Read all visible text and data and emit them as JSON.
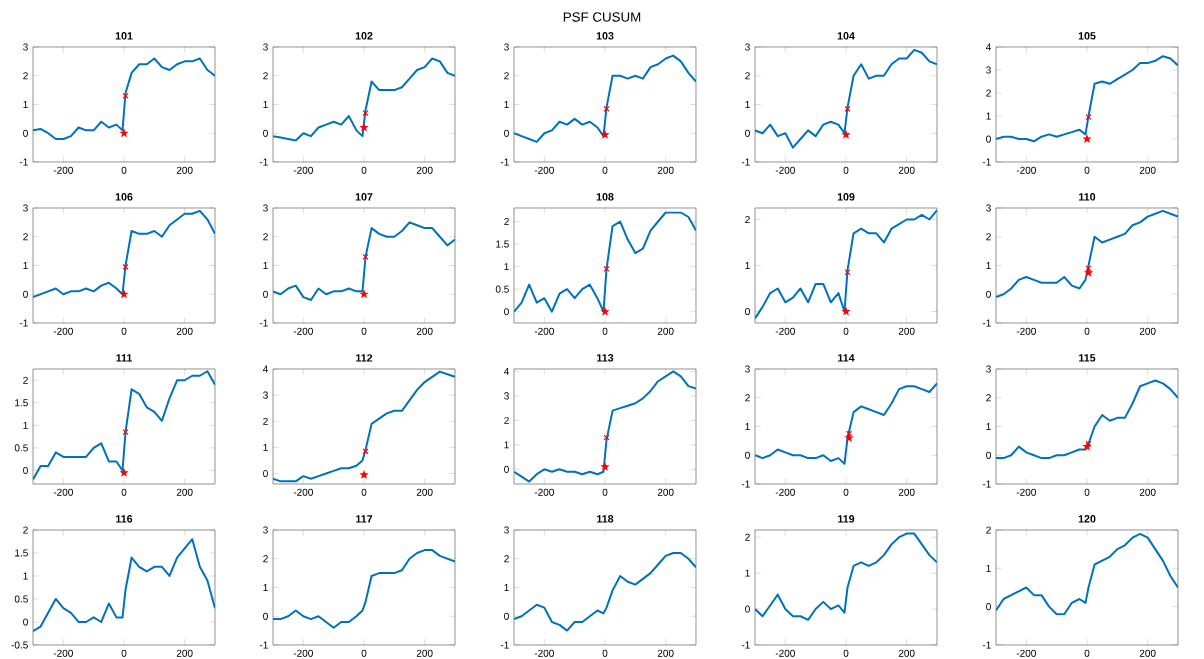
{
  "chart_data": [
    {
      "type": "other",
      "title": "PSF CUSUM"
    },
    {
      "type": "line",
      "title": "101",
      "x": [
        -300,
        -275,
        -250,
        -225,
        -200,
        -175,
        -150,
        -125,
        -100,
        -75,
        -50,
        -25,
        -5,
        5,
        25,
        50,
        75,
        100,
        125,
        150,
        175,
        200,
        225,
        250,
        275,
        300
      ],
      "xlim": [
        -300,
        300
      ],
      "xticks": [
        -200,
        0,
        200
      ],
      "ylim": [
        -1,
        3
      ],
      "yticks": [
        -1,
        0,
        1,
        2,
        3
      ],
      "series": [
        {
          "type": "line",
          "color": "#0072bd",
          "marker": "none",
          "values": [
            0.1,
            0.15,
            0.0,
            -0.2,
            -0.2,
            -0.1,
            0.2,
            0.1,
            0.1,
            0.4,
            0.2,
            0.3,
            0.1,
            1.4,
            2.1,
            2.4,
            2.4,
            2.6,
            2.3,
            2.2,
            2.4,
            2.5,
            2.5,
            2.6,
            2.2,
            2.0
          ]
        },
        {
          "type": "scatter",
          "color": "#ff0000",
          "marker": "cross",
          "x": [
            5
          ],
          "values": [
            1.3
          ]
        },
        {
          "type": "scatter",
          "color": "#ff0000",
          "marker": "star",
          "x": [
            0
          ],
          "values": [
            0.0
          ]
        }
      ]
    },
    {
      "type": "line",
      "title": "102",
      "x": [
        -300,
        -275,
        -250,
        -225,
        -200,
        -175,
        -150,
        -125,
        -100,
        -75,
        -50,
        -25,
        -5,
        5,
        25,
        50,
        75,
        100,
        125,
        150,
        175,
        200,
        225,
        250,
        275,
        300
      ],
      "xlim": [
        -300,
        300
      ],
      "xticks": [
        -200,
        0,
        200
      ],
      "ylim": [
        -1,
        3
      ],
      "yticks": [
        -1,
        0,
        1,
        2,
        3
      ],
      "series": [
        {
          "type": "line",
          "color": "#0072bd",
          "marker": "none",
          "values": [
            -0.1,
            -0.15,
            -0.2,
            -0.25,
            0.0,
            -0.1,
            0.2,
            0.3,
            0.4,
            0.3,
            0.6,
            0.1,
            -0.1,
            0.8,
            1.8,
            1.5,
            1.5,
            1.5,
            1.6,
            1.9,
            2.2,
            2.3,
            2.6,
            2.5,
            2.1,
            2.0
          ]
        },
        {
          "type": "scatter",
          "color": "#ff0000",
          "marker": "cross",
          "x": [
            5
          ],
          "values": [
            0.7
          ]
        },
        {
          "type": "scatter",
          "color": "#ff0000",
          "marker": "star",
          "x": [
            0
          ],
          "values": [
            0.2
          ]
        }
      ]
    },
    {
      "type": "line",
      "title": "103",
      "x": [
        -300,
        -275,
        -250,
        -225,
        -200,
        -175,
        -150,
        -125,
        -100,
        -75,
        -50,
        -25,
        -5,
        5,
        25,
        50,
        75,
        100,
        125,
        150,
        175,
        200,
        225,
        250,
        275,
        300
      ],
      "xlim": [
        -300,
        300
      ],
      "xticks": [
        -200,
        0,
        200
      ],
      "ylim": [
        -1,
        3
      ],
      "yticks": [
        -1,
        0,
        1,
        2,
        3
      ],
      "series": [
        {
          "type": "line",
          "color": "#0072bd",
          "marker": "none",
          "values": [
            0.0,
            -0.1,
            -0.2,
            -0.3,
            0.0,
            0.1,
            0.4,
            0.3,
            0.5,
            0.3,
            0.4,
            0.2,
            -0.1,
            0.9,
            2.0,
            2.0,
            1.9,
            2.0,
            1.9,
            2.3,
            2.4,
            2.6,
            2.7,
            2.5,
            2.1,
            1.8
          ]
        },
        {
          "type": "scatter",
          "color": "#ff0000",
          "marker": "cross",
          "x": [
            5
          ],
          "values": [
            0.85
          ]
        },
        {
          "type": "scatter",
          "color": "#ff0000",
          "marker": "star",
          "x": [
            0
          ],
          "values": [
            -0.05
          ]
        }
      ]
    },
    {
      "type": "line",
      "title": "104",
      "x": [
        -300,
        -275,
        -250,
        -225,
        -200,
        -175,
        -150,
        -125,
        -100,
        -75,
        -50,
        -25,
        -5,
        5,
        25,
        50,
        75,
        100,
        125,
        150,
        175,
        200,
        225,
        250,
        275,
        300
      ],
      "xlim": [
        -300,
        300
      ],
      "xticks": [
        -200,
        0,
        200
      ],
      "ylim": [
        -1,
        3
      ],
      "yticks": [
        -1,
        0,
        1,
        2,
        3
      ],
      "series": [
        {
          "type": "line",
          "color": "#0072bd",
          "marker": "none",
          "values": [
            0.1,
            0.0,
            0.3,
            -0.1,
            0.0,
            -0.5,
            -0.2,
            0.1,
            -0.1,
            0.3,
            0.4,
            0.3,
            0.0,
            0.9,
            2.0,
            2.4,
            1.9,
            2.0,
            2.0,
            2.4,
            2.6,
            2.6,
            2.9,
            2.8,
            2.5,
            2.4
          ]
        },
        {
          "type": "scatter",
          "color": "#ff0000",
          "marker": "cross",
          "x": [
            5
          ],
          "values": [
            0.85
          ]
        },
        {
          "type": "scatter",
          "color": "#ff0000",
          "marker": "star",
          "x": [
            0
          ],
          "values": [
            -0.05
          ]
        }
      ]
    },
    {
      "type": "line",
      "title": "105",
      "x": [
        -300,
        -275,
        -250,
        -225,
        -200,
        -175,
        -150,
        -125,
        -100,
        -75,
        -50,
        -25,
        -5,
        5,
        25,
        50,
        75,
        100,
        125,
        150,
        175,
        200,
        225,
        250,
        275,
        300
      ],
      "xlim": [
        -300,
        300
      ],
      "xticks": [
        -200,
        0,
        200
      ],
      "ylim": [
        -1,
        4
      ],
      "yticks": [
        -1,
        0,
        1,
        2,
        3,
        4
      ],
      "series": [
        {
          "type": "line",
          "color": "#0072bd",
          "marker": "none",
          "values": [
            0.0,
            0.1,
            0.1,
            0.0,
            0.0,
            -0.1,
            0.1,
            0.2,
            0.1,
            0.2,
            0.3,
            0.4,
            0.2,
            1.0,
            2.4,
            2.5,
            2.4,
            2.6,
            2.8,
            3.0,
            3.3,
            3.3,
            3.4,
            3.6,
            3.5,
            3.2
          ]
        },
        {
          "type": "scatter",
          "color": "#ff0000",
          "marker": "cross",
          "x": [
            5
          ],
          "values": [
            0.95
          ]
        },
        {
          "type": "scatter",
          "color": "#ff0000",
          "marker": "star",
          "x": [
            0
          ],
          "values": [
            0.0
          ]
        }
      ]
    },
    {
      "type": "line",
      "title": "106",
      "x": [
        -300,
        -275,
        -250,
        -225,
        -200,
        -175,
        -150,
        -125,
        -100,
        -75,
        -50,
        -25,
        -5,
        5,
        25,
        50,
        75,
        100,
        125,
        150,
        175,
        200,
        225,
        250,
        275,
        300
      ],
      "xlim": [
        -300,
        300
      ],
      "xticks": [
        -200,
        0,
        200
      ],
      "ylim": [
        -1,
        3
      ],
      "yticks": [
        -1,
        0,
        1,
        2,
        3
      ],
      "series": [
        {
          "type": "line",
          "color": "#0072bd",
          "marker": "none",
          "values": [
            -0.1,
            0.0,
            0.1,
            0.2,
            0.0,
            0.1,
            0.1,
            0.2,
            0.1,
            0.3,
            0.4,
            0.2,
            0.0,
            1.0,
            2.2,
            2.1,
            2.1,
            2.2,
            2.0,
            2.4,
            2.6,
            2.8,
            2.8,
            2.9,
            2.6,
            2.1
          ]
        },
        {
          "type": "scatter",
          "color": "#ff0000",
          "marker": "cross",
          "x": [
            5
          ],
          "values": [
            0.95
          ]
        },
        {
          "type": "scatter",
          "color": "#ff0000",
          "marker": "star",
          "x": [
            0
          ],
          "values": [
            0.0
          ]
        }
      ]
    },
    {
      "type": "line",
      "title": "107",
      "x": [
        -300,
        -275,
        -250,
        -225,
        -200,
        -175,
        -150,
        -125,
        -100,
        -75,
        -50,
        -25,
        -5,
        5,
        25,
        50,
        75,
        100,
        125,
        150,
        175,
        200,
        225,
        250,
        275,
        300
      ],
      "xlim": [
        -300,
        300
      ],
      "xticks": [
        -200,
        0,
        200
      ],
      "ylim": [
        -1,
        3
      ],
      "yticks": [
        -1,
        0,
        1,
        2,
        3
      ],
      "series": [
        {
          "type": "line",
          "color": "#0072bd",
          "marker": "none",
          "values": [
            0.1,
            0.0,
            0.2,
            0.3,
            -0.1,
            -0.2,
            0.2,
            0.0,
            0.1,
            0.1,
            0.2,
            0.1,
            0.1,
            1.3,
            2.3,
            2.1,
            2.0,
            2.0,
            2.2,
            2.5,
            2.4,
            2.3,
            2.3,
            2.0,
            1.7,
            1.9
          ]
        },
        {
          "type": "scatter",
          "color": "#ff0000",
          "marker": "cross",
          "x": [
            5
          ],
          "values": [
            1.3
          ]
        },
        {
          "type": "scatter",
          "color": "#ff0000",
          "marker": "star",
          "x": [
            0
          ],
          "values": [
            0.0
          ]
        }
      ]
    },
    {
      "type": "line",
      "title": "108",
      "x": [
        -300,
        -275,
        -250,
        -225,
        -200,
        -175,
        -150,
        -125,
        -100,
        -75,
        -50,
        -25,
        -5,
        5,
        25,
        50,
        75,
        100,
        125,
        150,
        175,
        200,
        225,
        250,
        275,
        300
      ],
      "xlim": [
        -300,
        300
      ],
      "xticks": [
        -200,
        0,
        200
      ],
      "ylim": [
        -0.25,
        2.3
      ],
      "yticks": [
        0,
        0.5,
        1,
        1.5,
        2
      ],
      "series": [
        {
          "type": "line",
          "color": "#0072bd",
          "marker": "none",
          "values": [
            0.0,
            0.2,
            0.6,
            0.2,
            0.3,
            0.0,
            0.4,
            0.5,
            0.3,
            0.5,
            0.6,
            0.3,
            0.0,
            0.95,
            1.9,
            2.0,
            1.6,
            1.3,
            1.4,
            1.8,
            2.0,
            2.2,
            2.2,
            2.2,
            2.1,
            1.8
          ]
        },
        {
          "type": "scatter",
          "color": "#ff0000",
          "marker": "cross",
          "x": [
            5
          ],
          "values": [
            0.95
          ]
        },
        {
          "type": "scatter",
          "color": "#ff0000",
          "marker": "star",
          "x": [
            0
          ],
          "values": [
            0.0
          ]
        }
      ]
    },
    {
      "type": "line",
      "title": "109",
      "x": [
        -300,
        -275,
        -250,
        -225,
        -200,
        -175,
        -150,
        -125,
        -100,
        -75,
        -50,
        -25,
        -5,
        5,
        25,
        50,
        75,
        100,
        125,
        150,
        175,
        200,
        225,
        250,
        275,
        300
      ],
      "xlim": [
        -300,
        300
      ],
      "xticks": [
        -200,
        0,
        200
      ],
      "ylim": [
        -0.25,
        2.25
      ],
      "yticks": [
        0,
        1,
        2
      ],
      "series": [
        {
          "type": "line",
          "color": "#0072bd",
          "marker": "none",
          "values": [
            -0.15,
            0.1,
            0.4,
            0.5,
            0.2,
            0.3,
            0.5,
            0.2,
            0.6,
            0.6,
            0.2,
            0.4,
            0.0,
            0.9,
            1.7,
            1.8,
            1.7,
            1.7,
            1.5,
            1.8,
            1.9,
            2.0,
            2.0,
            2.1,
            2.0,
            2.2
          ]
        },
        {
          "type": "scatter",
          "color": "#ff0000",
          "marker": "cross",
          "x": [
            5
          ],
          "values": [
            0.85
          ]
        },
        {
          "type": "scatter",
          "color": "#ff0000",
          "marker": "star",
          "x": [
            0
          ],
          "values": [
            0.0
          ]
        }
      ]
    },
    {
      "type": "line",
      "title": "110",
      "x": [
        -300,
        -275,
        -250,
        -225,
        -200,
        -175,
        -150,
        -125,
        -100,
        -75,
        -50,
        -25,
        -5,
        5,
        25,
        50,
        75,
        100,
        125,
        150,
        175,
        200,
        225,
        250,
        275,
        300
      ],
      "xlim": [
        -300,
        300
      ],
      "xticks": [
        -200,
        0,
        200
      ],
      "ylim": [
        -1,
        3
      ],
      "yticks": [
        -1,
        0,
        1,
        2,
        3
      ],
      "series": [
        {
          "type": "line",
          "color": "#0072bd",
          "marker": "none",
          "values": [
            -0.1,
            0.0,
            0.2,
            0.5,
            0.6,
            0.5,
            0.4,
            0.4,
            0.4,
            0.6,
            0.3,
            0.2,
            0.5,
            1.0,
            2.0,
            1.8,
            1.9,
            2.0,
            2.1,
            2.4,
            2.5,
            2.7,
            2.8,
            2.9,
            2.8,
            2.7
          ]
        },
        {
          "type": "scatter",
          "color": "#ff0000",
          "marker": "cross",
          "x": [
            5
          ],
          "values": [
            0.9
          ]
        },
        {
          "type": "scatter",
          "color": "#ff0000",
          "marker": "star",
          "x": [
            5
          ],
          "values": [
            0.75
          ]
        }
      ]
    },
    {
      "type": "line",
      "title": "111",
      "x": [
        -300,
        -275,
        -250,
        -225,
        -200,
        -175,
        -150,
        -125,
        -100,
        -75,
        -50,
        -25,
        -5,
        5,
        25,
        50,
        75,
        100,
        125,
        150,
        175,
        200,
        225,
        250,
        275,
        300
      ],
      "xlim": [
        -300,
        300
      ],
      "xticks": [
        -200,
        0,
        200
      ],
      "ylim": [
        -0.3,
        2.25
      ],
      "yticks": [
        0,
        0.5,
        1,
        1.5,
        2
      ],
      "series": [
        {
          "type": "line",
          "color": "#0072bd",
          "marker": "none",
          "values": [
            -0.2,
            0.1,
            0.1,
            0.4,
            0.3,
            0.3,
            0.3,
            0.3,
            0.5,
            0.6,
            0.2,
            0.2,
            0.0,
            0.85,
            1.8,
            1.7,
            1.4,
            1.3,
            1.1,
            1.6,
            2.0,
            2.0,
            2.1,
            2.1,
            2.2,
            1.9
          ]
        },
        {
          "type": "scatter",
          "color": "#ff0000",
          "marker": "cross",
          "x": [
            5
          ],
          "values": [
            0.85
          ]
        },
        {
          "type": "scatter",
          "color": "#ff0000",
          "marker": "star",
          "x": [
            0
          ],
          "values": [
            -0.05
          ]
        }
      ]
    },
    {
      "type": "line",
      "title": "112",
      "x": [
        -300,
        -275,
        -250,
        -225,
        -200,
        -175,
        -150,
        -125,
        -100,
        -75,
        -50,
        -25,
        -5,
        5,
        25,
        50,
        75,
        100,
        125,
        150,
        175,
        200,
        225,
        250,
        275,
        300
      ],
      "xlim": [
        -300,
        300
      ],
      "xticks": [
        -200,
        0,
        200
      ],
      "ylim": [
        -0.4,
        4
      ],
      "yticks": [
        0,
        1,
        2,
        3,
        4
      ],
      "series": [
        {
          "type": "line",
          "color": "#0072bd",
          "marker": "none",
          "values": [
            -0.2,
            -0.3,
            -0.3,
            -0.3,
            -0.1,
            -0.2,
            -0.1,
            0.0,
            0.1,
            0.2,
            0.2,
            0.3,
            0.5,
            0.9,
            1.9,
            2.1,
            2.3,
            2.4,
            2.4,
            2.8,
            3.2,
            3.5,
            3.7,
            3.9,
            3.8,
            3.7
          ]
        },
        {
          "type": "scatter",
          "color": "#ff0000",
          "marker": "cross",
          "x": [
            5
          ],
          "values": [
            0.85
          ]
        },
        {
          "type": "scatter",
          "color": "#ff0000",
          "marker": "star",
          "x": [
            0
          ],
          "values": [
            -0.05
          ]
        }
      ]
    },
    {
      "type": "line",
      "title": "113",
      "x": [
        -300,
        -275,
        -250,
        -225,
        -200,
        -175,
        -150,
        -125,
        -100,
        -75,
        -50,
        -25,
        -5,
        5,
        25,
        50,
        75,
        100,
        125,
        150,
        175,
        200,
        225,
        250,
        275,
        300
      ],
      "xlim": [
        -300,
        300
      ],
      "xticks": [
        -200,
        0,
        200
      ],
      "ylim": [
        -0.6,
        4.1
      ],
      "yticks": [
        0,
        1,
        2,
        3,
        4
      ],
      "series": [
        {
          "type": "line",
          "color": "#0072bd",
          "marker": "none",
          "values": [
            -0.1,
            -0.3,
            -0.5,
            -0.2,
            0.0,
            -0.1,
            0.0,
            -0.1,
            -0.1,
            -0.2,
            -0.1,
            -0.2,
            -0.1,
            1.2,
            2.4,
            2.5,
            2.6,
            2.7,
            2.9,
            3.2,
            3.6,
            3.8,
            4.0,
            3.8,
            3.4,
            3.3
          ]
        },
        {
          "type": "scatter",
          "color": "#ff0000",
          "marker": "cross",
          "x": [
            5
          ],
          "values": [
            1.3
          ]
        },
        {
          "type": "scatter",
          "color": "#ff0000",
          "marker": "star",
          "x": [
            0
          ],
          "values": [
            0.1
          ]
        }
      ]
    },
    {
      "type": "line",
      "title": "114",
      "x": [
        -300,
        -275,
        -250,
        -225,
        -200,
        -175,
        -150,
        -125,
        -100,
        -75,
        -50,
        -25,
        -5,
        5,
        25,
        50,
        75,
        100,
        125,
        150,
        175,
        200,
        225,
        250,
        275,
        300
      ],
      "xlim": [
        -300,
        300
      ],
      "xticks": [
        -200,
        0,
        200
      ],
      "ylim": [
        -1,
        3
      ],
      "yticks": [
        -1,
        0,
        1,
        2,
        3
      ],
      "series": [
        {
          "type": "line",
          "color": "#0072bd",
          "marker": "none",
          "values": [
            0.0,
            -0.1,
            0.0,
            0.2,
            0.1,
            0.0,
            0.0,
            -0.1,
            -0.1,
            0.0,
            -0.2,
            -0.1,
            -0.3,
            0.6,
            1.5,
            1.7,
            1.6,
            1.5,
            1.4,
            1.8,
            2.3,
            2.4,
            2.4,
            2.3,
            2.2,
            2.5
          ]
        },
        {
          "type": "scatter",
          "color": "#ff0000",
          "marker": "cross",
          "x": [
            10
          ],
          "values": [
            0.75
          ]
        },
        {
          "type": "scatter",
          "color": "#ff0000",
          "marker": "star",
          "x": [
            10
          ],
          "values": [
            0.6
          ]
        }
      ]
    },
    {
      "type": "line",
      "title": "115",
      "x": [
        -300,
        -275,
        -250,
        -225,
        -200,
        -175,
        -150,
        -125,
        -100,
        -75,
        -50,
        -25,
        -5,
        5,
        25,
        50,
        75,
        100,
        125,
        150,
        175,
        200,
        225,
        250,
        275,
        300
      ],
      "xlim": [
        -300,
        300
      ],
      "xticks": [
        -200,
        0,
        200
      ],
      "ylim": [
        -1,
        3
      ],
      "yticks": [
        -1,
        0,
        1,
        2,
        3
      ],
      "series": [
        {
          "type": "line",
          "color": "#0072bd",
          "marker": "none",
          "values": [
            -0.1,
            -0.1,
            0.0,
            0.3,
            0.1,
            0.0,
            -0.1,
            -0.1,
            0.0,
            0.0,
            0.1,
            0.2,
            0.2,
            0.4,
            1.0,
            1.4,
            1.2,
            1.3,
            1.3,
            1.8,
            2.4,
            2.5,
            2.6,
            2.5,
            2.3,
            2.0
          ]
        },
        {
          "type": "scatter",
          "color": "#ff0000",
          "marker": "cross",
          "x": [
            5
          ],
          "values": [
            0.4
          ]
        },
        {
          "type": "scatter",
          "color": "#ff0000",
          "marker": "star",
          "x": [
            0
          ],
          "values": [
            0.3
          ]
        }
      ]
    },
    {
      "type": "line",
      "title": "116",
      "x": [
        -300,
        -275,
        -250,
        -225,
        -200,
        -175,
        -150,
        -125,
        -100,
        -75,
        -50,
        -25,
        -5,
        5,
        25,
        50,
        75,
        100,
        125,
        150,
        175,
        200,
        225,
        250,
        275,
        300
      ],
      "xlim": [
        -300,
        300
      ],
      "xticks": [
        -200,
        0,
        200
      ],
      "ylim": [
        -0.5,
        2
      ],
      "yticks": [
        -0.5,
        0,
        0.5,
        1,
        1.5,
        2
      ],
      "series": [
        {
          "type": "line",
          "color": "#0072bd",
          "marker": "none",
          "values": [
            -0.2,
            -0.1,
            0.2,
            0.5,
            0.3,
            0.2,
            0.0,
            0.0,
            0.1,
            0.0,
            0.4,
            0.1,
            0.1,
            0.7,
            1.4,
            1.2,
            1.1,
            1.2,
            1.2,
            1.0,
            1.4,
            1.6,
            1.8,
            1.2,
            0.9,
            0.3
          ]
        }
      ]
    },
    {
      "type": "line",
      "title": "117",
      "x": [
        -300,
        -275,
        -250,
        -225,
        -200,
        -175,
        -150,
        -125,
        -100,
        -75,
        -50,
        -25,
        -5,
        5,
        25,
        50,
        75,
        100,
        125,
        150,
        175,
        200,
        225,
        250,
        275,
        300
      ],
      "xlim": [
        -300,
        300
      ],
      "xticks": [
        -200,
        0,
        200
      ],
      "ylim": [
        -1,
        3
      ],
      "yticks": [
        -1,
        0,
        1,
        2,
        3
      ],
      "series": [
        {
          "type": "line",
          "color": "#0072bd",
          "marker": "none",
          "values": [
            -0.1,
            -0.1,
            0.0,
            0.2,
            0.0,
            -0.1,
            0.0,
            -0.2,
            -0.4,
            -0.2,
            -0.2,
            0.0,
            0.2,
            0.5,
            1.4,
            1.5,
            1.5,
            1.5,
            1.6,
            2.0,
            2.2,
            2.3,
            2.3,
            2.1,
            2.0,
            1.9
          ]
        }
      ]
    },
    {
      "type": "line",
      "title": "118",
      "x": [
        -300,
        -275,
        -250,
        -225,
        -200,
        -175,
        -150,
        -125,
        -100,
        -75,
        -50,
        -25,
        -5,
        5,
        25,
        50,
        75,
        100,
        125,
        150,
        175,
        200,
        225,
        250,
        275,
        300
      ],
      "xlim": [
        -300,
        300
      ],
      "xticks": [
        -200,
        0,
        200
      ],
      "ylim": [
        -1,
        3
      ],
      "yticks": [
        -1,
        0,
        1,
        2,
        3
      ],
      "series": [
        {
          "type": "line",
          "color": "#0072bd",
          "marker": "none",
          "values": [
            -0.1,
            0.0,
            0.2,
            0.4,
            0.3,
            -0.2,
            -0.3,
            -0.5,
            -0.2,
            -0.2,
            0.0,
            0.2,
            0.1,
            0.3,
            0.9,
            1.4,
            1.2,
            1.1,
            1.3,
            1.5,
            1.8,
            2.1,
            2.2,
            2.2,
            2.0,
            1.7
          ]
        }
      ]
    },
    {
      "type": "line",
      "title": "119",
      "x": [
        -300,
        -275,
        -250,
        -225,
        -200,
        -175,
        -150,
        -125,
        -100,
        -75,
        -50,
        -25,
        -5,
        5,
        25,
        50,
        75,
        100,
        125,
        150,
        175,
        200,
        225,
        250,
        275,
        300
      ],
      "xlim": [
        -300,
        300
      ],
      "xticks": [
        -200,
        0,
        200
      ],
      "ylim": [
        -1,
        2.2
      ],
      "yticks": [
        -1,
        0,
        1,
        2
      ],
      "series": [
        {
          "type": "line",
          "color": "#0072bd",
          "marker": "none",
          "values": [
            0.0,
            -0.2,
            0.1,
            0.4,
            0.0,
            -0.2,
            -0.2,
            -0.3,
            0.0,
            0.2,
            0.0,
            0.1,
            -0.1,
            0.6,
            1.2,
            1.3,
            1.2,
            1.3,
            1.5,
            1.8,
            2.0,
            2.1,
            2.1,
            1.8,
            1.5,
            1.3
          ]
        }
      ]
    },
    {
      "type": "line",
      "title": "120",
      "x": [
        -300,
        -275,
        -250,
        -225,
        -200,
        -175,
        -150,
        -125,
        -100,
        -75,
        -50,
        -25,
        -5,
        5,
        25,
        50,
        75,
        100,
        125,
        150,
        175,
        200,
        225,
        250,
        275,
        300
      ],
      "xlim": [
        -300,
        300
      ],
      "xticks": [
        -200,
        0,
        200
      ],
      "ylim": [
        -1,
        2
      ],
      "yticks": [
        -1,
        0,
        1,
        2
      ],
      "series": [
        {
          "type": "line",
          "color": "#0072bd",
          "marker": "none",
          "values": [
            -0.1,
            0.2,
            0.3,
            0.4,
            0.5,
            0.3,
            0.3,
            0.0,
            -0.2,
            -0.2,
            0.1,
            0.2,
            0.1,
            0.5,
            1.1,
            1.2,
            1.3,
            1.5,
            1.6,
            1.8,
            1.9,
            1.8,
            1.5,
            1.2,
            0.8,
            0.5
          ]
        }
      ]
    }
  ]
}
